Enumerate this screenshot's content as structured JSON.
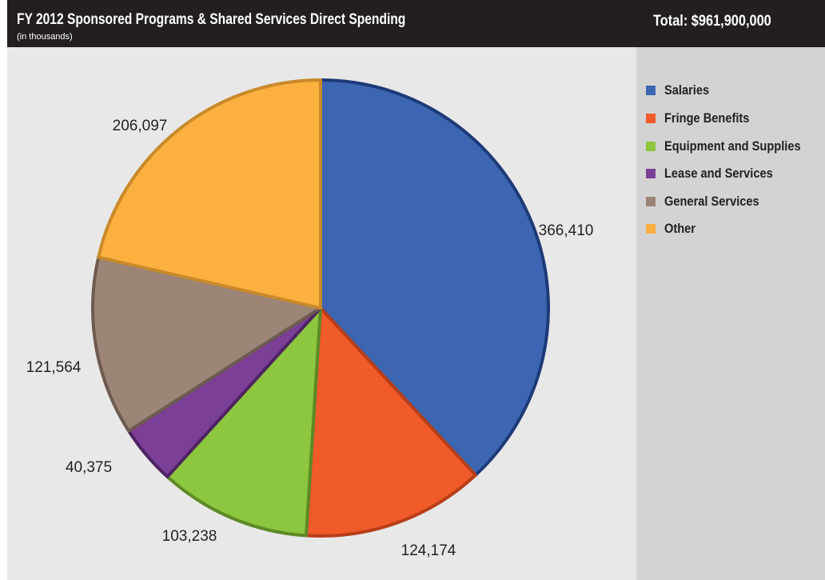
{
  "header": {
    "title": "FY 2012 Sponsored Programs & Shared Services Direct Spending",
    "subtitle": "(in thousands)",
    "total": "Total: $961,900,000"
  },
  "chart_data": {
    "type": "pie",
    "title": "FY 2012 Sponsored Programs & Shared Services Direct Spending",
    "subtitle": "(in thousands)",
    "legend_position": "right",
    "categories": [
      "Salaries",
      "Fringe Benefits",
      "Equipment and Supplies",
      "Lease and Services",
      "General Services",
      "Other"
    ],
    "values": [
      366410,
      124174,
      103238,
      40375,
      121564,
      206097
    ],
    "data_labels": [
      "366,410",
      "124,174",
      "103,238",
      "40,375",
      "121,564",
      "206,097"
    ],
    "colors": [
      "#3c66b1",
      "#f15a29",
      "#8dc63f",
      "#7b3f98",
      "#9c8577",
      "#fbb040"
    ],
    "border_colors": [
      "#1d3a78",
      "#b83e18",
      "#5d8a26",
      "#4e2362",
      "#6e5b50",
      "#c98a2a"
    ]
  }
}
